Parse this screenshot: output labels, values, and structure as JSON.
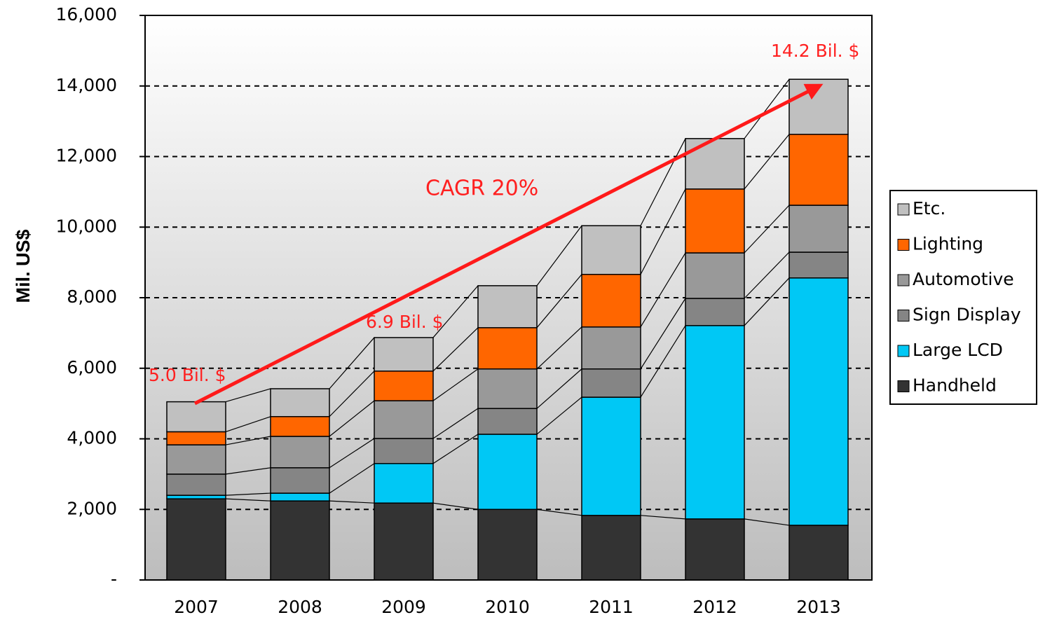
{
  "chart_data": {
    "type": "stacked_bar",
    "y_label": "Mil. US$",
    "categories": [
      "2007",
      "2008",
      "2009",
      "2010",
      "2011",
      "2012",
      "2013"
    ],
    "series": [
      {
        "name": "Handheld",
        "color": "#333333",
        "values": [
          2300,
          2240,
          2180,
          2000,
          1830,
          1730,
          1550
        ]
      },
      {
        "name": "Large LCD",
        "color": "#00c8f5",
        "values": [
          100,
          220,
          1120,
          2130,
          3350,
          5480,
          7010
        ]
      },
      {
        "name": "Sign Display",
        "color": "#858585",
        "values": [
          600,
          720,
          710,
          730,
          800,
          770,
          730
        ]
      },
      {
        "name": "Automotive",
        "color": "#999999",
        "values": [
          830,
          890,
          1070,
          1120,
          1190,
          1290,
          1330
        ]
      },
      {
        "name": "Lighting",
        "color": "#ff6600",
        "values": [
          370,
          560,
          840,
          1170,
          1490,
          1810,
          2010
        ]
      },
      {
        "name": "Etc.",
        "color": "#c0c0c0",
        "values": [
          850,
          790,
          950,
          1190,
          1380,
          1430,
          1560
        ]
      }
    ],
    "ylim": [
      0,
      16000
    ],
    "yticks": [
      {
        "value": 0,
        "label": "-"
      },
      {
        "value": 2000,
        "label": "2,000"
      },
      {
        "value": 4000,
        "label": "4,000"
      },
      {
        "value": 6000,
        "label": "6,000"
      },
      {
        "value": 8000,
        "label": "8,000"
      },
      {
        "value": 10000,
        "label": "10,000"
      },
      {
        "value": 12000,
        "label": "12,000"
      },
      {
        "value": 14000,
        "label": "14,000"
      },
      {
        "value": 16000,
        "label": "16,000"
      }
    ],
    "grid": true,
    "annotations": [
      "5.0 Bil. $",
      "6.9 Bil. $",
      "14.2 Bil. $",
      "CAGR 20%"
    ]
  }
}
